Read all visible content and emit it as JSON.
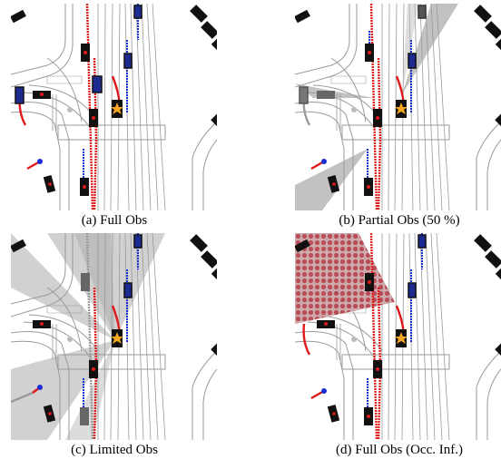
{
  "captions": {
    "a": "(a)  Full Obs",
    "b": "(b)  Partial Obs  (50 %)",
    "c": "(c)  Limited Obs",
    "d": "(d)  Full Obs  (Occ. Inf.)"
  },
  "colors": {
    "ego_marker": "#f5a623",
    "vehicle_body": "#111111",
    "vehicle_marker": "#e0191b",
    "trajectory_red": "#e0191b",
    "trajectory_blue": "#1a2ed6",
    "vehicle_blue_body": "#1d2a8f",
    "occlusion_gray": "#9a9a9a",
    "occlusion_inferred": "#b84a52",
    "road_lines": "#9a9a9a"
  },
  "icons": {
    "ego": "star-icon"
  }
}
